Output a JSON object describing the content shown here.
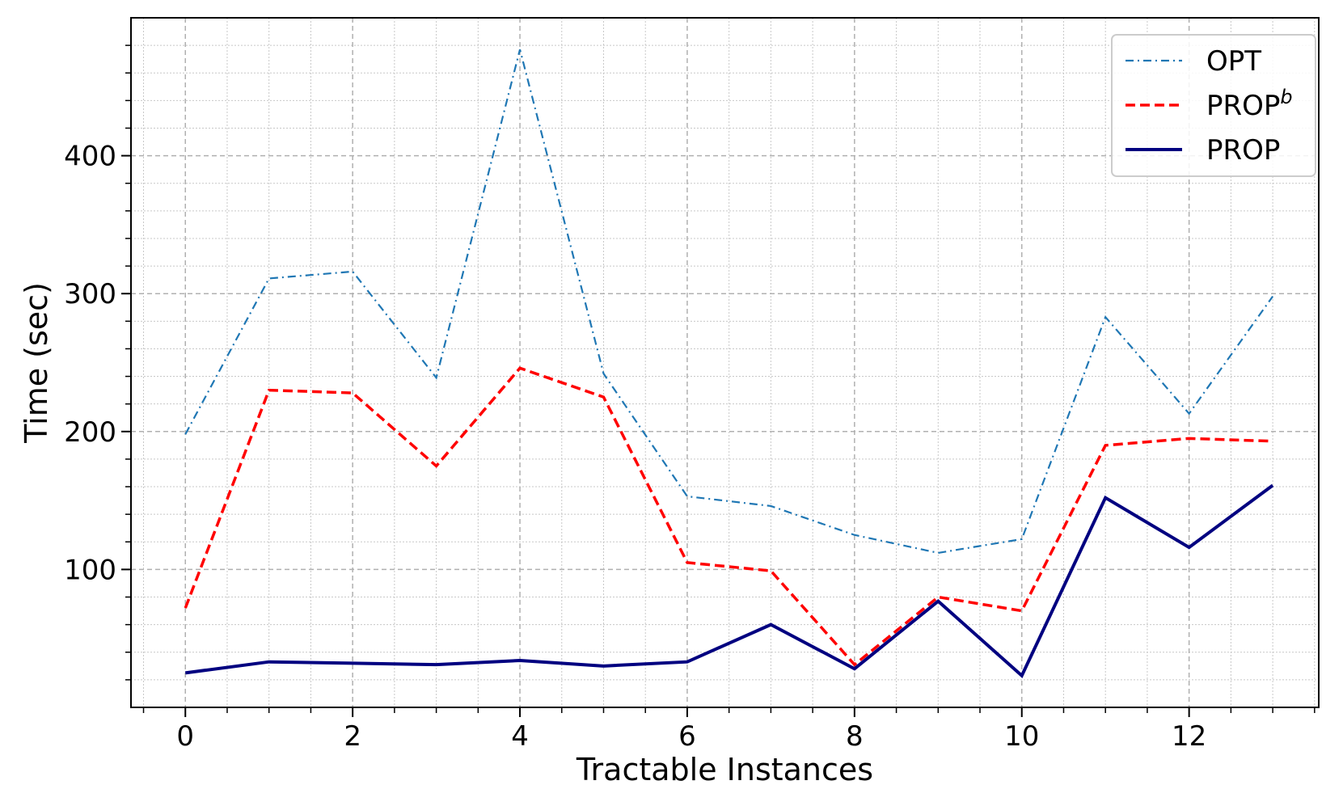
{
  "chart_data": {
    "type": "line",
    "title": "",
    "xlabel": "Tractable Instances",
    "ylabel": "Time (sec)",
    "x": [
      0,
      1,
      2,
      3,
      4,
      5,
      6,
      7,
      8,
      9,
      10,
      11,
      12,
      13
    ],
    "xlim": [
      -0.65,
      13.55
    ],
    "ylim": [
      0,
      500
    ],
    "x_ticks": [
      "0",
      "2",
      "4",
      "6",
      "8",
      "10",
      "12"
    ],
    "y_ticks": [
      "100",
      "200",
      "300",
      "400"
    ],
    "grid": true,
    "minor_grid": true,
    "legend_position": "top-right",
    "series": [
      {
        "name": "OPT",
        "color": "#1f77b4",
        "style": "dashdot",
        "values": [
          198,
          311,
          316,
          239,
          477,
          242,
          153,
          146,
          125,
          112,
          122,
          283,
          213,
          298
        ]
      },
      {
        "name": "PROP",
        "name_superscript": "b",
        "color": "#ff0000",
        "style": "dashed",
        "values": [
          72,
          230,
          228,
          175,
          246,
          225,
          105,
          99,
          31,
          80,
          70,
          190,
          195,
          193
        ]
      },
      {
        "name": "PROP",
        "color": "#000080",
        "style": "solid",
        "values": [
          25,
          33,
          32,
          31,
          34,
          30,
          33,
          60,
          28,
          77,
          23,
          152,
          116,
          161
        ]
      }
    ]
  }
}
